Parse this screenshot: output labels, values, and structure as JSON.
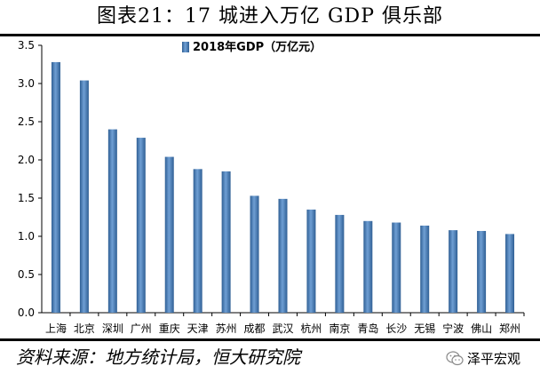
{
  "figure": {
    "title": "图表21：17 城进入万亿 GDP 俱乐部",
    "source": "资料来源：地方统计局，恒大研究院",
    "watermark": "泽平宏观",
    "watermark_icon": "wechat-logo-icon"
  },
  "chart_data": {
    "type": "bar",
    "legend": "2018年GDP（万亿元）",
    "categories": [
      "上海",
      "北京",
      "深圳",
      "广州",
      "重庆",
      "天津",
      "苏州",
      "成都",
      "武汉",
      "杭州",
      "南京",
      "青岛",
      "长沙",
      "无锡",
      "宁波",
      "佛山",
      "郑州"
    ],
    "values": [
      3.28,
      3.04,
      2.4,
      2.29,
      2.04,
      1.88,
      1.85,
      1.53,
      1.49,
      1.35,
      1.28,
      1.2,
      1.18,
      1.14,
      1.08,
      1.07,
      1.03
    ],
    "yticks": [
      "0.0",
      "0.5",
      "1.0",
      "1.5",
      "2.0",
      "2.5",
      "3.0",
      "3.5"
    ],
    "ylim": [
      0,
      3.5
    ],
    "xlabel": "",
    "ylabel": "",
    "grid": false,
    "legend_position": "top-center",
    "bar_color": "#4a7fb8"
  }
}
